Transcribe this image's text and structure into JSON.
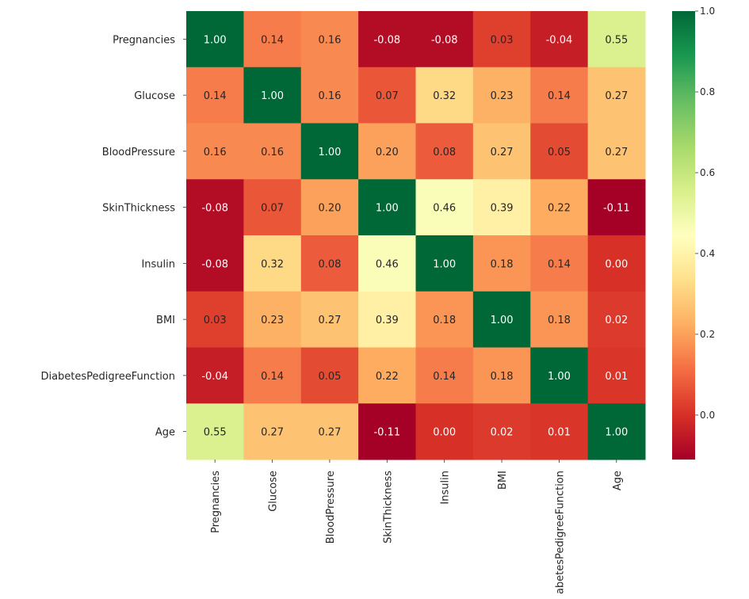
{
  "chart_data": {
    "type": "heatmap",
    "title": "",
    "xlabel": "",
    "ylabel": "",
    "rows": [
      "Pregnancies",
      "Glucose",
      "BloodPressure",
      "SkinThickness",
      "Insulin",
      "BMI",
      "DiabetesPedigreeFunction",
      "Age"
    ],
    "columns": [
      "Pregnancies",
      "Glucose",
      "BloodPressure",
      "SkinThickness",
      "Insulin",
      "BMI",
      "DiabetesPedigreeFunction",
      "Age"
    ],
    "values": [
      [
        1.0,
        0.14,
        0.16,
        -0.08,
        -0.08,
        0.03,
        -0.04,
        0.55
      ],
      [
        0.14,
        1.0,
        0.16,
        0.07,
        0.32,
        0.23,
        0.14,
        0.27
      ],
      [
        0.16,
        0.16,
        1.0,
        0.2,
        0.08,
        0.27,
        0.05,
        0.27
      ],
      [
        -0.08,
        0.07,
        0.2,
        1.0,
        0.46,
        0.39,
        0.22,
        -0.11
      ],
      [
        -0.08,
        0.32,
        0.08,
        0.46,
        1.0,
        0.18,
        0.14,
        -0.0
      ],
      [
        0.03,
        0.23,
        0.27,
        0.39,
        0.18,
        1.0,
        0.18,
        0.02
      ],
      [
        -0.04,
        0.14,
        0.05,
        0.22,
        0.14,
        0.18,
        1.0,
        0.01
      ],
      [
        0.55,
        0.27,
        0.27,
        -0.11,
        -0.0,
        0.02,
        0.01,
        1.0
      ]
    ],
    "annotation_format": "0.00",
    "colormap": "RdYlGn",
    "color_range": [
      -0.11,
      1.0
    ],
    "colorbar_ticks": [
      "0.0",
      "0.2",
      "0.4",
      "0.6",
      "0.8",
      "1.0"
    ],
    "colorbar_tick_values": [
      0.0,
      0.2,
      0.4,
      0.6,
      0.8,
      1.0
    ],
    "grid": false,
    "legend": "colorbar-right"
  }
}
